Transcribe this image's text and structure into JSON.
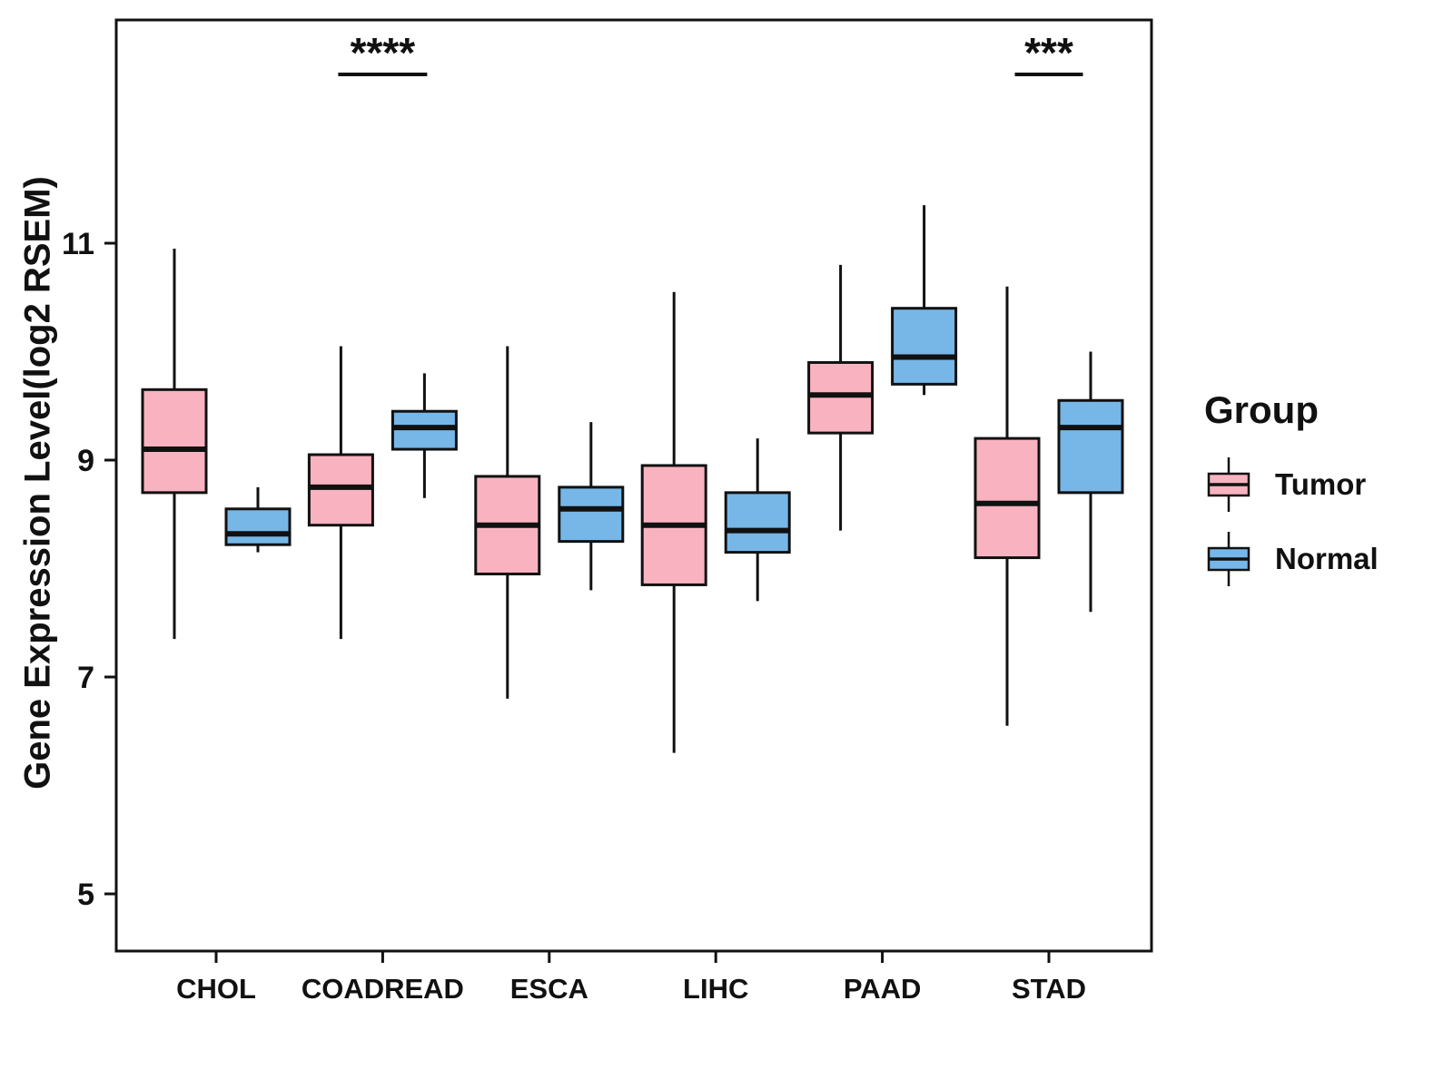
{
  "chart_data": {
    "type": "boxplot",
    "title": "",
    "xlabel": "",
    "ylabel": "Gene Expression Level(log2 RSEM)",
    "ylim": [
      4.4,
      13.0
    ],
    "yticks": [
      5,
      7,
      9,
      11
    ],
    "grid": false,
    "categories": [
      "CHOL",
      "COADREAD",
      "ESCA",
      "LIHC",
      "PAAD",
      "STAD"
    ],
    "series": [
      {
        "name": "Tumor",
        "color": "#F9B3C0",
        "boxes": [
          {
            "low": 7.35,
            "q1": 8.7,
            "median": 9.1,
            "q3": 9.65,
            "high": 10.95
          },
          {
            "low": 7.35,
            "q1": 8.4,
            "median": 8.75,
            "q3": 9.05,
            "high": 10.05
          },
          {
            "low": 6.8,
            "q1": 7.95,
            "median": 8.4,
            "q3": 8.85,
            "high": 10.05
          },
          {
            "low": 6.3,
            "q1": 7.85,
            "median": 8.4,
            "q3": 8.95,
            "high": 10.55
          },
          {
            "low": 8.35,
            "q1": 9.25,
            "median": 9.6,
            "q3": 9.9,
            "high": 10.8
          },
          {
            "low": 6.55,
            "q1": 8.1,
            "median": 8.6,
            "q3": 9.2,
            "high": 10.6
          }
        ]
      },
      {
        "name": "Normal",
        "color": "#76B7E8",
        "boxes": [
          {
            "low": 8.15,
            "q1": 8.22,
            "median": 8.32,
            "q3": 8.55,
            "high": 8.75
          },
          {
            "low": 8.65,
            "q1": 9.1,
            "median": 9.3,
            "q3": 9.45,
            "high": 9.8
          },
          {
            "low": 7.8,
            "q1": 8.25,
            "median": 8.55,
            "q3": 8.75,
            "high": 9.35
          },
          {
            "low": 7.7,
            "q1": 8.15,
            "median": 8.35,
            "q3": 8.7,
            "high": 9.2
          },
          {
            "low": 9.6,
            "q1": 9.7,
            "median": 9.95,
            "q3": 10.4,
            "high": 11.35
          },
          {
            "low": 7.6,
            "q1": 8.7,
            "median": 9.3,
            "q3": 9.55,
            "high": 10.0
          }
        ]
      }
    ],
    "annotations": [
      {
        "category": "COADREAD",
        "label": "****"
      },
      {
        "category": "STAD",
        "label": "***"
      }
    ],
    "legend": {
      "title": "Group",
      "position": "right"
    }
  }
}
